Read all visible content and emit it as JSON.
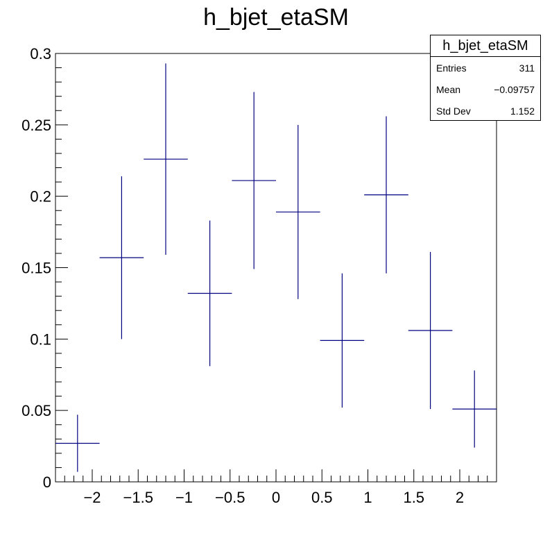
{
  "chart_data": {
    "type": "scatter",
    "title": "h_bjet_etaSM",
    "xlabel": "",
    "ylabel": "",
    "xlim": [
      -2.4,
      2.4
    ],
    "ylim": [
      0,
      0.3
    ],
    "xticks": [
      -2,
      -1.5,
      -1,
      -0.5,
      0,
      0.5,
      1,
      1.5,
      2
    ],
    "xtick_labels": [
      "−2",
      "−1.5",
      "−1",
      "−0.5",
      "0",
      "0.5",
      "1",
      "1.5",
      "2"
    ],
    "yticks": [
      0,
      0.05,
      0.1,
      0.15,
      0.2,
      0.25,
      0.3
    ],
    "ytick_labels": [
      "0",
      "0.05",
      "0.1",
      "0.15",
      "0.2",
      "0.25",
      "0.3"
    ],
    "bin_width": 0.48,
    "x": [
      -2.16,
      -1.68,
      -1.2,
      -0.72,
      -0.24,
      0.24,
      0.72,
      1.2,
      1.68,
      2.16
    ],
    "values": [
      0.027,
      0.157,
      0.226,
      0.132,
      0.211,
      0.189,
      0.099,
      0.201,
      0.106,
      0.051
    ],
    "errors": [
      0.02,
      0.057,
      0.067,
      0.051,
      0.062,
      0.061,
      0.047,
      0.055,
      0.055,
      0.027
    ],
    "marker_color": "#000080",
    "grid": false
  },
  "stats": {
    "name": "h_bjet_etaSM",
    "rows": [
      {
        "label": "Entries",
        "value": "311"
      },
      {
        "label": "Mean",
        "value": "−0.09757"
      },
      {
        "label": "Std Dev",
        "value": "1.152"
      }
    ]
  }
}
